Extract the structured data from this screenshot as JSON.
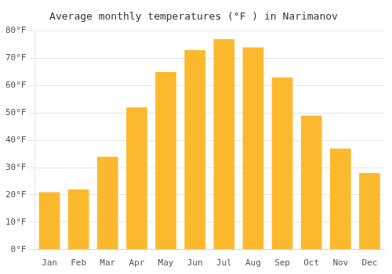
{
  "chart_data": {
    "type": "bar",
    "title": "Average monthly temperatures (°F ) in Narimanov",
    "categories": [
      "Jan",
      "Feb",
      "Mar",
      "Apr",
      "May",
      "Jun",
      "Jul",
      "Aug",
      "Sep",
      "Oct",
      "Nov",
      "Dec"
    ],
    "values": [
      21,
      22,
      34,
      52,
      65,
      73,
      77,
      74,
      63,
      49,
      37,
      28
    ],
    "color": "#FDB92E",
    "ylim": [
      0,
      80
    ],
    "yticks": [
      {
        "value": 0,
        "label": "0°F"
      },
      {
        "value": 10,
        "label": "10°F"
      },
      {
        "value": 20,
        "label": "20°F"
      },
      {
        "value": 30,
        "label": "30°F"
      },
      {
        "value": 40,
        "label": "40°F"
      },
      {
        "value": 50,
        "label": "50°F"
      },
      {
        "value": 60,
        "label": "60°F"
      },
      {
        "value": 70,
        "label": "70°F"
      },
      {
        "value": 80,
        "label": "80°F"
      }
    ],
    "grid": true
  }
}
